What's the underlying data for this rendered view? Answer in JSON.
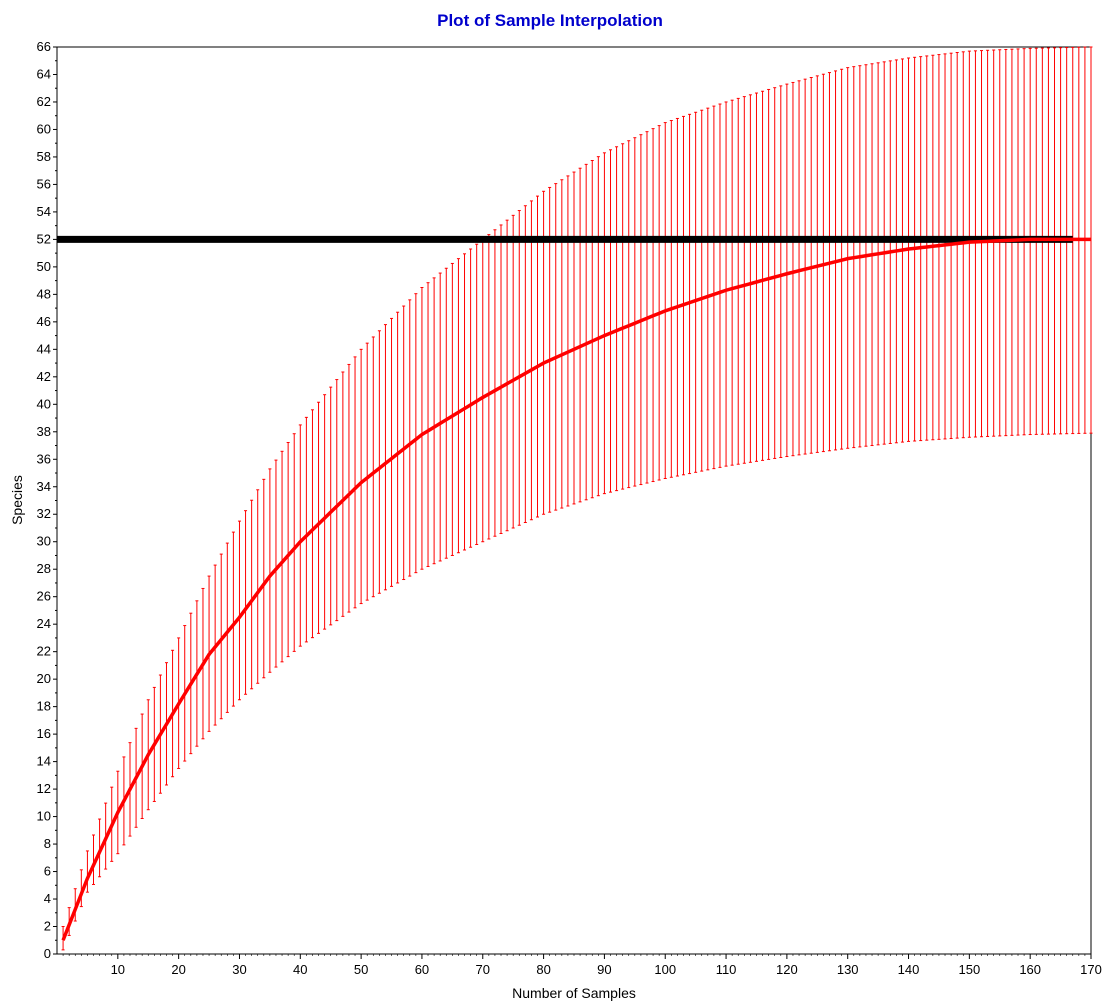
{
  "chart_data": {
    "type": "line",
    "title": "Plot of Sample Interpolation",
    "xlabel": "Number of Samples",
    "ylabel": "Species",
    "xlim": [
      0,
      170
    ],
    "ylim": [
      0,
      66
    ],
    "x_ticks": [
      10,
      20,
      30,
      40,
      50,
      60,
      70,
      80,
      90,
      100,
      110,
      120,
      130,
      140,
      150,
      160,
      170
    ],
    "y_ticks": [
      0,
      2,
      4,
      6,
      8,
      10,
      12,
      14,
      16,
      18,
      20,
      22,
      24,
      26,
      28,
      30,
      32,
      34,
      36,
      38,
      40,
      42,
      44,
      46,
      48,
      50,
      52,
      54,
      56,
      58,
      60,
      62,
      64,
      66
    ],
    "grid": false,
    "legend": "none",
    "colors": {
      "title": "#0000cc",
      "curve": "#ff0000",
      "error_bars": "#ff0000",
      "reference_line": "#000000"
    },
    "series": [
      {
        "kind": "interpolation-curve-with-error-bars",
        "x": [
          1,
          5,
          10,
          15,
          20,
          25,
          30,
          35,
          40,
          50,
          60,
          70,
          80,
          90,
          100,
          110,
          120,
          130,
          140,
          150,
          160,
          170
        ],
        "y": [
          1,
          5.5,
          10.3,
          14.5,
          18.2,
          21.8,
          24.5,
          27.5,
          30,
          34.3,
          37.8,
          40.5,
          43,
          45,
          46.8,
          48.3,
          49.5,
          50.6,
          51.3,
          51.8,
          52,
          52
        ],
        "lower": [
          0.3,
          4.5,
          7.3,
          10.5,
          13.5,
          16.2,
          18.5,
          20.5,
          22.4,
          25.5,
          28,
          30,
          32,
          33.5,
          34.6,
          35.5,
          36.2,
          36.8,
          37.3,
          37.6,
          37.8,
          37.9
        ],
        "upper": [
          2,
          7.5,
          13.3,
          18.5,
          23,
          27.5,
          31.5,
          35.3,
          38.5,
          44,
          48.5,
          52,
          55.5,
          58.3,
          60.5,
          62,
          63.3,
          64.5,
          65.2,
          65.7,
          65.9,
          66
        ]
      },
      {
        "kind": "reference-line",
        "x": [
          0,
          167
        ],
        "y": [
          52,
          52
        ]
      }
    ]
  }
}
